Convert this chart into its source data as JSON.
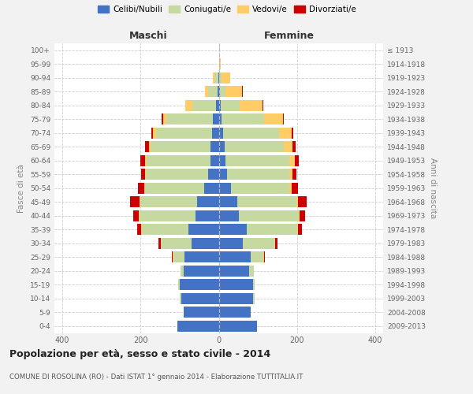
{
  "age_groups": [
    "0-4",
    "5-9",
    "10-14",
    "15-19",
    "20-24",
    "25-29",
    "30-34",
    "35-39",
    "40-44",
    "45-49",
    "50-54",
    "55-59",
    "60-64",
    "65-69",
    "70-74",
    "75-79",
    "80-84",
    "85-89",
    "90-94",
    "95-99",
    "100+"
  ],
  "birth_years": [
    "2009-2013",
    "2004-2008",
    "1999-2003",
    "1994-1998",
    "1989-1993",
    "1984-1988",
    "1979-1983",
    "1974-1978",
    "1969-1973",
    "1964-1968",
    "1959-1963",
    "1954-1958",
    "1949-1953",
    "1944-1948",
    "1939-1943",
    "1934-1938",
    "1929-1933",
    "1924-1928",
    "1919-1923",
    "1914-1918",
    "≤ 1913"
  ],
  "male_celibi": [
    105,
    90,
    95,
    100,
    90,
    88,
    70,
    78,
    60,
    55,
    38,
    28,
    22,
    22,
    18,
    15,
    8,
    3,
    2,
    0,
    0
  ],
  "male_coniugati": [
    0,
    0,
    4,
    4,
    8,
    28,
    78,
    118,
    142,
    145,
    150,
    158,
    162,
    152,
    142,
    118,
    60,
    25,
    10,
    0,
    0
  ],
  "male_vedovi": [
    0,
    0,
    0,
    0,
    0,
    1,
    1,
    2,
    2,
    2,
    3,
    3,
    4,
    5,
    8,
    10,
    18,
    8,
    4,
    0,
    0
  ],
  "male_divorziati": [
    0,
    0,
    0,
    0,
    0,
    2,
    5,
    10,
    14,
    25,
    15,
    10,
    12,
    10,
    5,
    3,
    0,
    0,
    0,
    0,
    0
  ],
  "female_nubili": [
    98,
    82,
    88,
    88,
    78,
    82,
    62,
    72,
    52,
    48,
    32,
    22,
    18,
    15,
    12,
    8,
    5,
    3,
    2,
    0,
    0
  ],
  "female_coniugate": [
    0,
    0,
    4,
    4,
    12,
    32,
    82,
    128,
    152,
    150,
    148,
    158,
    162,
    152,
    142,
    108,
    48,
    15,
    5,
    0,
    0
  ],
  "female_vedove": [
    0,
    0,
    0,
    0,
    0,
    1,
    1,
    2,
    2,
    4,
    6,
    8,
    14,
    22,
    32,
    48,
    58,
    42,
    22,
    5,
    0
  ],
  "female_divorziate": [
    0,
    0,
    0,
    0,
    0,
    2,
    5,
    10,
    14,
    22,
    16,
    10,
    10,
    8,
    4,
    3,
    2,
    2,
    1,
    0,
    0
  ],
  "color_celibi": "#4472C4",
  "color_coniugati": "#C5D9A0",
  "color_vedovi": "#FFCC66",
  "color_divorziati": "#CC0000",
  "xlim": 420,
  "title": "Popolazione per età, sesso e stato civile - 2014",
  "subtitle": "COMUNE DI ROSOLINA (RO) - Dati ISTAT 1° gennaio 2014 - Elaborazione TUTTITALIA.IT",
  "ylabel_left": "Fasce di età",
  "ylabel_right": "Anni di nascita",
  "label_maschi": "Maschi",
  "label_femmine": "Femmine",
  "legend_labels": [
    "Celibi/Nubili",
    "Coniugati/e",
    "Vedovi/e",
    "Divorziati/e"
  ],
  "bg_color": "#f2f2f2",
  "plot_bg_color": "#ffffff"
}
